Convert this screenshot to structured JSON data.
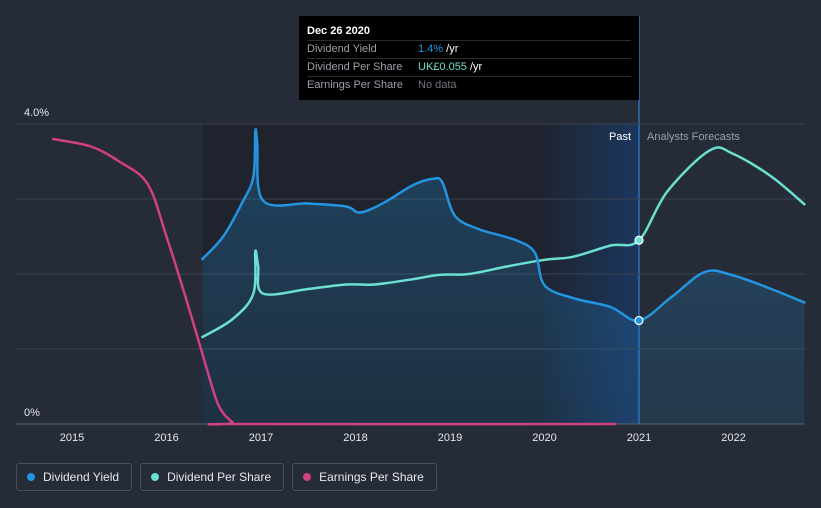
{
  "chart_data": {
    "type": "line",
    "x_ticks": [
      2015,
      2016,
      2017,
      2018,
      2019,
      2020,
      2021,
      2022
    ],
    "y_ticks": [
      "4.0%",
      "0%"
    ],
    "ylim": [
      0,
      4.0
    ],
    "past_label": "Past",
    "forecast_label": "Analysts Forecasts",
    "grid": true,
    "series": [
      {
        "name": "Dividend Yield",
        "color": "#2394df",
        "values": [
          [
            2016.38,
            2.2
          ],
          [
            2016.6,
            2.5
          ],
          [
            2016.8,
            2.95
          ],
          [
            2016.92,
            3.3
          ],
          [
            2016.94,
            3.9
          ],
          [
            2016.96,
            3.75
          ],
          [
            2017.02,
            2.98
          ],
          [
            2017.5,
            2.94
          ],
          [
            2017.9,
            2.9
          ],
          [
            2018.05,
            2.82
          ],
          [
            2018.3,
            2.95
          ],
          [
            2018.6,
            3.18
          ],
          [
            2018.82,
            3.27
          ],
          [
            2018.92,
            3.22
          ],
          [
            2019.05,
            2.78
          ],
          [
            2019.3,
            2.6
          ],
          [
            2019.7,
            2.45
          ],
          [
            2019.9,
            2.28
          ],
          [
            2020.0,
            1.85
          ],
          [
            2020.3,
            1.68
          ],
          [
            2020.7,
            1.56
          ],
          [
            2021.0,
            1.38
          ],
          [
            2021.35,
            1.7
          ],
          [
            2021.7,
            2.03
          ],
          [
            2022.0,
            1.98
          ],
          [
            2022.4,
            1.8
          ],
          [
            2022.75,
            1.62
          ]
        ]
      },
      {
        "name": "Dividend Per Share",
        "color": "#6bdfd0",
        "values": [
          [
            2016.38,
            1.16
          ],
          [
            2016.7,
            1.4
          ],
          [
            2016.92,
            1.74
          ],
          [
            2016.94,
            2.3
          ],
          [
            2016.97,
            2.1
          ],
          [
            2017.02,
            1.74
          ],
          [
            2017.5,
            1.8
          ],
          [
            2017.9,
            1.86
          ],
          [
            2018.2,
            1.86
          ],
          [
            2018.6,
            1.93
          ],
          [
            2018.9,
            1.99
          ],
          [
            2019.2,
            2.0
          ],
          [
            2019.6,
            2.1
          ],
          [
            2020.0,
            2.19
          ],
          [
            2020.3,
            2.23
          ],
          [
            2020.7,
            2.38
          ],
          [
            2021.0,
            2.45
          ],
          [
            2021.3,
            3.1
          ],
          [
            2021.75,
            3.65
          ],
          [
            2022.0,
            3.6
          ],
          [
            2022.4,
            3.3
          ],
          [
            2022.75,
            2.93
          ]
        ]
      },
      {
        "name": "Earnings Per Share",
        "color": "#d1407f",
        "values": [
          [
            2014.8,
            3.8
          ],
          [
            2015.2,
            3.7
          ],
          [
            2015.5,
            3.5
          ],
          [
            2015.8,
            3.2
          ],
          [
            2016.0,
            2.5
          ],
          [
            2016.2,
            1.7
          ],
          [
            2016.4,
            0.85
          ],
          [
            2016.55,
            0.25
          ],
          [
            2016.7,
            0.02
          ],
          [
            2016.75,
            0.0
          ],
          [
            2020.75,
            0.0
          ]
        ]
      }
    ]
  },
  "tooltip": {
    "date": "Dec 26 2020",
    "rows": [
      {
        "label": "Dividend Yield",
        "value": "1.4%",
        "suffix": " /yr"
      },
      {
        "label": "Dividend Per Share",
        "value": "UK£0.055",
        "suffix": " /yr"
      },
      {
        "label": "Earnings Per Share",
        "value": "No data"
      }
    ]
  },
  "legend": [
    {
      "label": "Dividend Yield",
      "color": "#2394df"
    },
    {
      "label": "Dividend Per Share",
      "color": "#6bdfd0"
    },
    {
      "label": "Earnings Per Share",
      "color": "#d1407f"
    }
  ]
}
